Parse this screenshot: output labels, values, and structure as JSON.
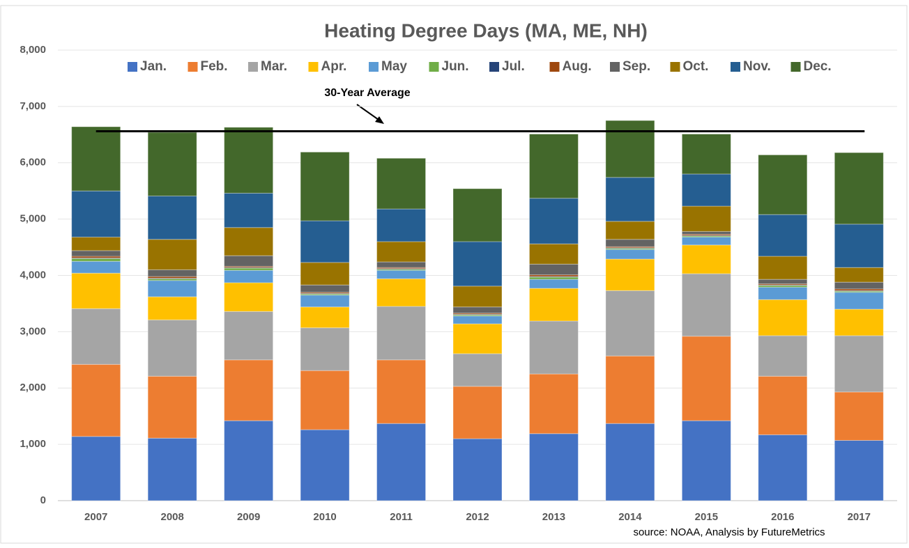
{
  "chart_data": {
    "type": "stacked-bar",
    "title": "Heating Degree Days (MA, ME, NH)",
    "categories": [
      "2007",
      "2008",
      "2009",
      "2010",
      "2011",
      "2012",
      "2013",
      "2014",
      "2015",
      "2016",
      "2017"
    ],
    "ylim": [
      0,
      8000
    ],
    "yticks": [
      0,
      {
        "value": 1000,
        "label": "1,000"
      },
      {
        "value": 2000,
        "label": "2,000"
      },
      {
        "value": 3000,
        "label": "3,000"
      },
      {
        "value": 4000,
        "label": "4,000"
      },
      {
        "value": 5000,
        "label": "5,000"
      },
      {
        "value": 6000,
        "label": "6,000"
      },
      {
        "value": 7000,
        "label": "7,000"
      },
      {
        "value": 8000,
        "label": "8,000"
      }
    ],
    "grid": true,
    "legend": "top",
    "series": [
      {
        "name": "Jan.",
        "color": "#4472c4",
        "values": [
          1140,
          1110,
          1420,
          1260,
          1370,
          1100,
          1190,
          1370,
          1420,
          1170,
          1070
        ]
      },
      {
        "name": "Feb.",
        "color": "#ed7d31",
        "values": [
          1280,
          1100,
          1080,
          1050,
          1130,
          930,
          1060,
          1200,
          1500,
          1040,
          860
        ]
      },
      {
        "name": "Mar.",
        "color": "#a5a5a5",
        "values": [
          990,
          1000,
          860,
          760,
          950,
          580,
          940,
          1160,
          1110,
          720,
          1000
        ]
      },
      {
        "name": "Apr.",
        "color": "#ffc000",
        "values": [
          630,
          410,
          510,
          370,
          490,
          530,
          580,
          560,
          510,
          640,
          470
        ]
      },
      {
        "name": "May",
        "color": "#5b9bd5",
        "values": [
          210,
          290,
          220,
          210,
          150,
          140,
          160,
          170,
          140,
          220,
          300
        ]
      },
      {
        "name": "Jun.",
        "color": "#70ad47",
        "values": [
          50,
          30,
          40,
          20,
          20,
          20,
          40,
          20,
          20,
          30,
          20
        ]
      },
      {
        "name": "Jul.",
        "color": "#264478",
        "values": [
          10,
          10,
          10,
          10,
          10,
          10,
          10,
          10,
          10,
          10,
          10
        ]
      },
      {
        "name": "Aug.",
        "color": "#9e480e",
        "values": [
          30,
          30,
          20,
          20,
          20,
          20,
          30,
          20,
          20,
          20,
          30
        ]
      },
      {
        "name": "Sep.",
        "color": "#636363",
        "values": [
          100,
          120,
          190,
          130,
          100,
          110,
          190,
          130,
          50,
          80,
          120
        ]
      },
      {
        "name": "Oct.",
        "color": "#997300",
        "values": [
          240,
          540,
          500,
          400,
          360,
          370,
          360,
          320,
          450,
          410,
          260
        ]
      },
      {
        "name": "Nov.",
        "color": "#255e91",
        "values": [
          820,
          770,
          610,
          740,
          580,
          790,
          810,
          780,
          570,
          740,
          770
        ]
      },
      {
        "name": "Dec.",
        "color": "#43682b",
        "values": [
          1140,
          1130,
          1170,
          1220,
          900,
          940,
          1140,
          1010,
          710,
          1060,
          1270
        ]
      }
    ],
    "average": {
      "label": "30-Year Average",
      "value": 6560
    },
    "source": "source: NOAA, Analysis by FutureMetrics"
  }
}
